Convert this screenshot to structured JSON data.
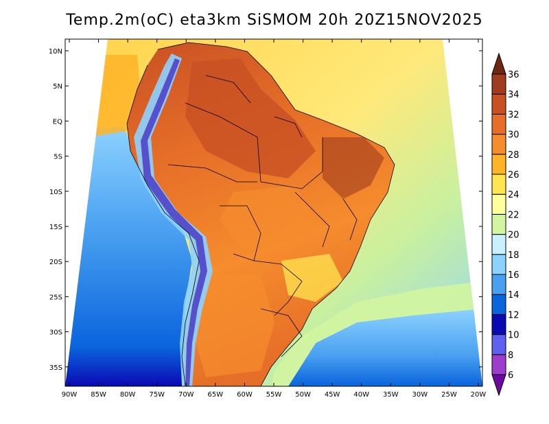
{
  "title": "Temp.2m(oC) eta3km SiSMOM 20h 20Z15NOV2025",
  "map": {
    "lat_labels": [
      "10N",
      "5N",
      "EQ",
      "5S",
      "10S",
      "15S",
      "20S",
      "25S",
      "30S",
      "35S"
    ],
    "lon_labels": [
      "90W",
      "85W",
      "80W",
      "75W",
      "70W",
      "65W",
      "60W",
      "55W",
      "50W",
      "45W",
      "40W",
      "35W",
      "30W",
      "25W",
      "20W"
    ]
  },
  "colorbar": {
    "levels": [
      "6",
      "8",
      "10",
      "12",
      "14",
      "16",
      "18",
      "20",
      "22",
      "24",
      "26",
      "28",
      "30",
      "32",
      "34",
      "36"
    ],
    "colors": [
      "#6a0aa0",
      "#a03ccd",
      "#6060f0",
      "#0a0ab4",
      "#0a64dc",
      "#4aa0f0",
      "#8cd2ff",
      "#c8f0ff",
      "#d2f5a0",
      "#ffff9c",
      "#ffe650",
      "#ffb428",
      "#f58c2d",
      "#e66e28",
      "#c85023",
      "#a03c1e",
      "#6e280f"
    ]
  }
}
